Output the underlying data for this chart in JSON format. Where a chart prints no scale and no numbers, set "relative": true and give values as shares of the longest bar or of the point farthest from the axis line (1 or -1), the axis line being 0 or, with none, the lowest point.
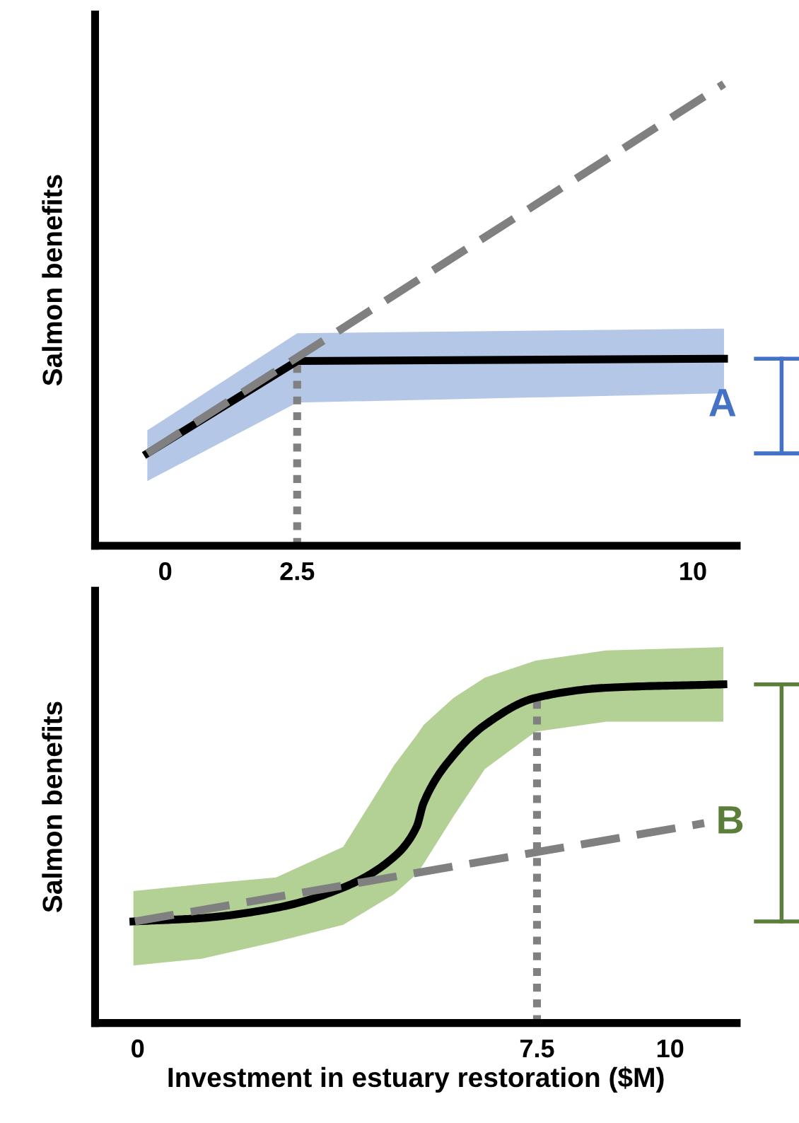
{
  "chart_data": [
    {
      "type": "line",
      "ylabel": "Salmon benefits",
      "relative": true,
      "xlim": [
        -1.33,
        10.83
      ],
      "xticks": [
        0,
        2.5,
        10
      ],
      "tick_labels": "x",
      "grid": false,
      "series": [
        {
          "color": "#000000",
          "line_style": "solid",
          "x": [
            -0.34,
            2.5,
            10.59
          ],
          "values": [
            0.2,
            0.4,
            0.405
          ],
          "lower": [
            0.14,
            0.31,
            0.33
          ],
          "upper": [
            0.25,
            0.46,
            0.47
          ]
        },
        {
          "color": "#808080",
          "line_style": "dashed",
          "x": [
            -0.34,
            10.59
          ],
          "values": [
            0.2,
            1.0
          ]
        }
      ],
      "ref_lines": [
        {
          "axis": "x",
          "value": 2.5,
          "color": "#808080",
          "line_style": "dotted"
        }
      ],
      "annotations": [
        "A"
      ]
    },
    {
      "type": "line",
      "ylabel": "Salmon benefits",
      "xlabel": "Investment in estuary restoration ($M)",
      "relative": true,
      "xlim": [
        -0.8,
        11.25
      ],
      "xticks": [
        0,
        7.5,
        10
      ],
      "tick_labels": "x",
      "grid": false,
      "series": [
        {
          "color": "#000000",
          "line_style": "solid",
          "x": [
            -0.08,
            1.2,
            2.6,
            3.86,
            4.81,
            5.24,
            5.37,
            5.93,
            6.52,
            7.47,
            8.8,
            11.0
          ],
          "values": [
            0.3,
            0.31,
            0.34,
            0.4,
            0.49,
            0.58,
            0.65,
            0.79,
            0.88,
            0.96,
            0.99,
            1.0
          ],
          "lower": [
            0.17,
            0.19,
            0.24,
            0.29,
            0.38,
            0.44,
            0.47,
            0.61,
            0.75,
            0.86,
            0.89,
            0.89
          ],
          "upper": [
            0.39,
            0.41,
            0.43,
            0.52,
            0.76,
            0.85,
            0.88,
            0.96,
            1.02,
            1.07,
            1.1,
            1.11
          ]
        },
        {
          "color": "#808080",
          "line_style": "dashed",
          "x": [
            -0.05,
            10.64
          ],
          "values": [
            0.3,
            0.59
          ]
        }
      ],
      "ref_lines": [
        {
          "axis": "x",
          "value": 7.5,
          "color": "#808080",
          "line_style": "dotted"
        }
      ],
      "annotations": [
        {
          "text": "B",
          "x": 10.64,
          "y": 0.59
        }
      ]
    }
  ]
}
